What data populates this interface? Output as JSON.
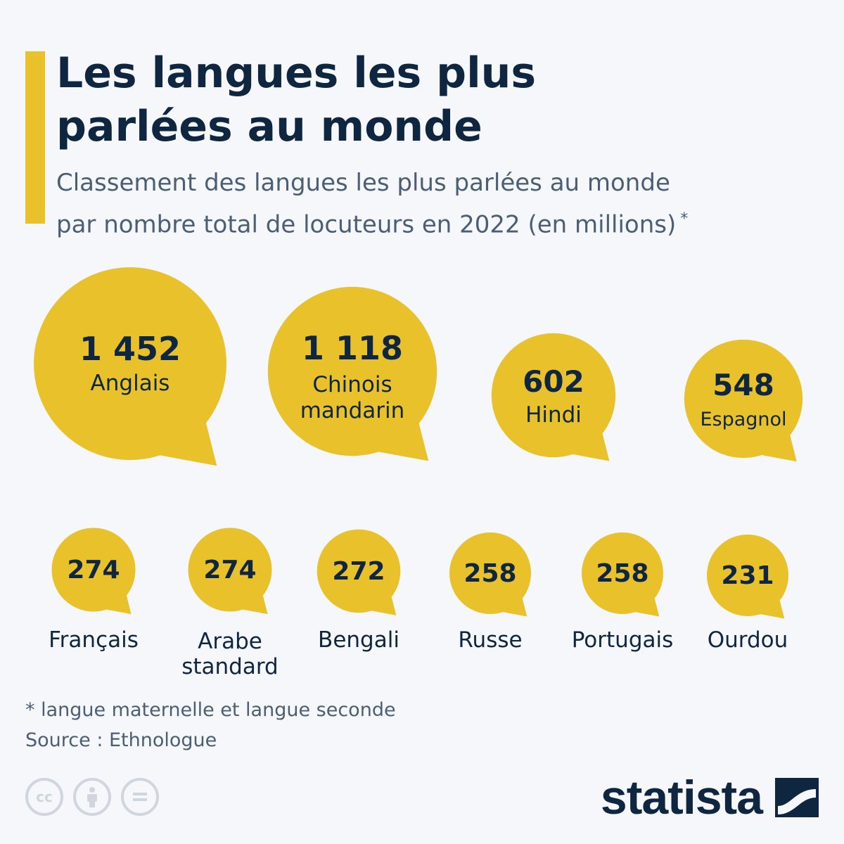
{
  "header": {
    "title": "Les langues les plus\nparlées au monde",
    "subtitle": "Classement des langues les plus parlées au monde\npar nombre total de locuteurs en 2022 (en millions)",
    "subtitle_mark": "*"
  },
  "chart_data": {
    "type": "bubble",
    "title": "Les langues les plus parlées au monde",
    "unit": "millions de locuteurs",
    "categories": [
      "Anglais",
      "Chinois mandarin",
      "Hindi",
      "Espagnol",
      "Français",
      "Arabe standard",
      "Bengali",
      "Russe",
      "Portugais",
      "Ourdou"
    ],
    "value_labels": [
      "1 452",
      "1 118",
      "602",
      "548",
      "274",
      "274",
      "272",
      "258",
      "258",
      "231"
    ],
    "values": [
      1452,
      1118,
      602,
      548,
      274,
      274,
      272,
      258,
      258,
      231
    ]
  },
  "footer": {
    "note": "* langue maternelle et langue seconde",
    "source": "Source : Ethnologue",
    "cc_icons": [
      "cc-icon",
      "attribution-icon",
      "no-derivatives-icon"
    ],
    "brand": "statista"
  },
  "colors": {
    "bubble": "#e9c22b",
    "text": "#0f2641",
    "muted": "#4b5e74",
    "background": "#f5f7fa"
  }
}
